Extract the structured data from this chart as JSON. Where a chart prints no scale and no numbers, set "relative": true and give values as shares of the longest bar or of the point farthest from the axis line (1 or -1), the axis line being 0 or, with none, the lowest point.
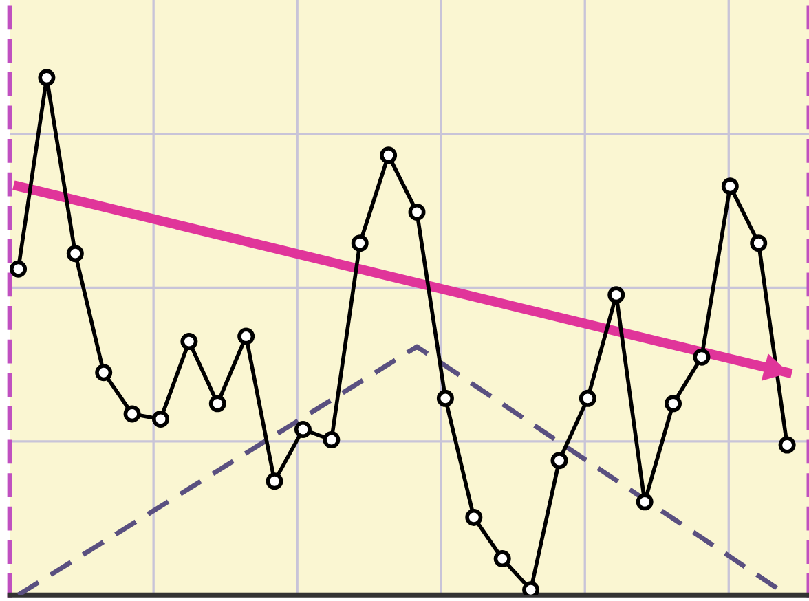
{
  "chart_data": {
    "type": "line",
    "relative": true,
    "grid": true,
    "marker": "circle",
    "line_style": "solid",
    "categories": [
      null,
      null,
      null,
      null,
      null,
      null,
      null,
      null,
      null,
      null,
      null,
      null,
      null,
      null,
      null,
      null,
      null,
      null,
      null,
      null,
      null,
      null,
      null,
      null,
      null,
      null,
      null,
      null
    ],
    "series": [
      {
        "color": "#000000",
        "values": [
          0.63,
          1.0,
          0.66,
          0.43,
          0.35,
          0.34,
          0.49,
          0.37,
          0.5,
          0.22,
          0.32,
          0.3,
          0.68,
          0.85,
          0.74,
          0.38,
          0.15,
          0.07,
          0.01,
          0.26,
          0.38,
          0.58,
          0.18,
          0.37,
          0.46,
          0.79,
          0.68,
          0.29
        ]
      },
      {
        "type": "line",
        "color": "#e0359a",
        "marker": "none",
        "line_style": "solid",
        "values": [
          0.79,
          null,
          null,
          null,
          null,
          null,
          null,
          null,
          null,
          null,
          null,
          null,
          null,
          null,
          null,
          null,
          null,
          null,
          null,
          null,
          null,
          null,
          null,
          null,
          null,
          null,
          null,
          0.43
        ]
      },
      {
        "type": "line",
        "color": "#5a5080",
        "marker": "none",
        "line_style": "dashed",
        "values": [
          0.0,
          null,
          null,
          null,
          null,
          null,
          null,
          null,
          null,
          null,
          null,
          null,
          null,
          null,
          0.48,
          null,
          null,
          null,
          null,
          null,
          null,
          null,
          null,
          null,
          null,
          null,
          null,
          0.0
        ]
      }
    ]
  }
}
